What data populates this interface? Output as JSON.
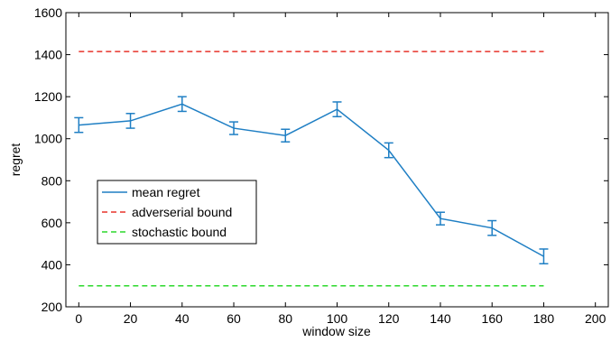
{
  "chart_data": {
    "type": "line",
    "xlabel": "window size",
    "ylabel": "regret",
    "xlim": [
      -5,
      205
    ],
    "ylim": [
      200,
      1600
    ],
    "xticks": [
      0,
      20,
      40,
      60,
      80,
      100,
      120,
      140,
      160,
      180,
      200
    ],
    "yticks": [
      200,
      400,
      600,
      800,
      1000,
      1200,
      1400,
      1600
    ],
    "grid": false,
    "legend_position": "center-left",
    "series": [
      {
        "name": "mean regret",
        "color": "#1f7fc4",
        "style": "solid",
        "x": [
          0,
          20,
          40,
          60,
          80,
          100,
          120,
          140,
          160,
          180
        ],
        "y": [
          1065,
          1085,
          1165,
          1050,
          1015,
          1140,
          945,
          620,
          575,
          440
        ],
        "err": [
          35,
          35,
          35,
          30,
          30,
          35,
          35,
          30,
          35,
          35
        ]
      },
      {
        "name": "adverserial bound",
        "color": "#e8332a",
        "style": "dashed",
        "x": [
          0,
          180
        ],
        "y": [
          1415,
          1415
        ]
      },
      {
        "name": "stochastic bound",
        "color": "#2bd92b",
        "style": "dashed",
        "x": [
          0,
          180
        ],
        "y": [
          300,
          300
        ]
      }
    ]
  }
}
